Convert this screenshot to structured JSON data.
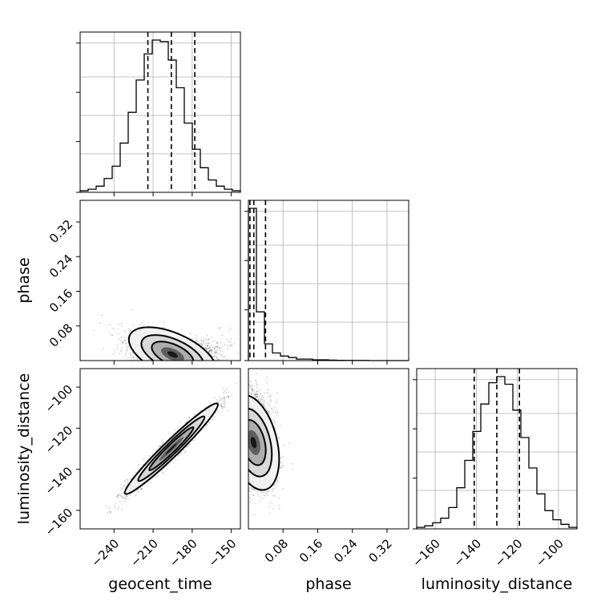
{
  "chart_data": {
    "type": "corner",
    "parameters": [
      {
        "key": "geocent_time",
        "label": "geocent_time",
        "range": [
          -266,
          -143
        ],
        "ticks": [
          -240,
          -210,
          -180,
          -150
        ],
        "tick_labels": [
          "−240",
          "−210",
          "−180",
          "−150"
        ]
      },
      {
        "key": "phase",
        "label": "phase",
        "range": [
          0.0,
          0.37
        ],
        "ticks": [
          0.08,
          0.16,
          0.24,
          0.32
        ],
        "tick_labels": [
          "0.08",
          "0.16",
          "0.24",
          "0.32"
        ]
      },
      {
        "key": "luminosity_distance",
        "label": "luminosity_distance",
        "range": [
          -169,
          -91
        ],
        "ticks": [
          -160,
          -140,
          -120,
          -100
        ],
        "tick_labels": [
          "−160",
          "−140",
          "−120",
          "−100"
        ]
      }
    ],
    "marginals": [
      {
        "param": "geocent_time",
        "bins": 20,
        "counts": [
          1,
          2,
          4,
          9,
          17,
          32,
          52,
          73,
          90,
          99,
          98,
          86,
          68,
          45,
          28,
          16,
          8,
          4,
          2,
          1
        ],
        "quantiles": [
          -214,
          -196,
          -178
        ]
      },
      {
        "param": "phase",
        "bins": 20,
        "counts": [
          100,
          32,
          11,
          5,
          3,
          2,
          1,
          1,
          0.5,
          0.5,
          0.3,
          0.2,
          0.1,
          0.1,
          0.1,
          0,
          0,
          0,
          0,
          0
        ],
        "quantiles": [
          0.0035,
          0.0125,
          0.0395
        ]
      },
      {
        "param": "luminosity_distance",
        "bins": 20,
        "counts": [
          1,
          2,
          4,
          7,
          14,
          27,
          45,
          64,
          82,
          96,
          100,
          95,
          78,
          60,
          40,
          23,
          12,
          6,
          3,
          1
        ],
        "quantiles": [
          -141,
          -130,
          -119
        ]
      }
    ],
    "pairs": [
      {
        "x": "geocent_time",
        "y": "phase",
        "center": [
          -195,
          0.014
        ],
        "spread": [
          16,
          0.03
        ],
        "correlation": -0.55
      },
      {
        "x": "geocent_time",
        "y": "luminosity_distance",
        "center": [
          -196,
          -130
        ],
        "spread": [
          17,
          10.5
        ],
        "correlation": 0.97
      },
      {
        "x": "phase",
        "y": "luminosity_distance",
        "center": [
          0.012,
          -127
        ],
        "spread": [
          0.028,
          11
        ],
        "correlation": -0.35
      }
    ],
    "grid": true
  }
}
